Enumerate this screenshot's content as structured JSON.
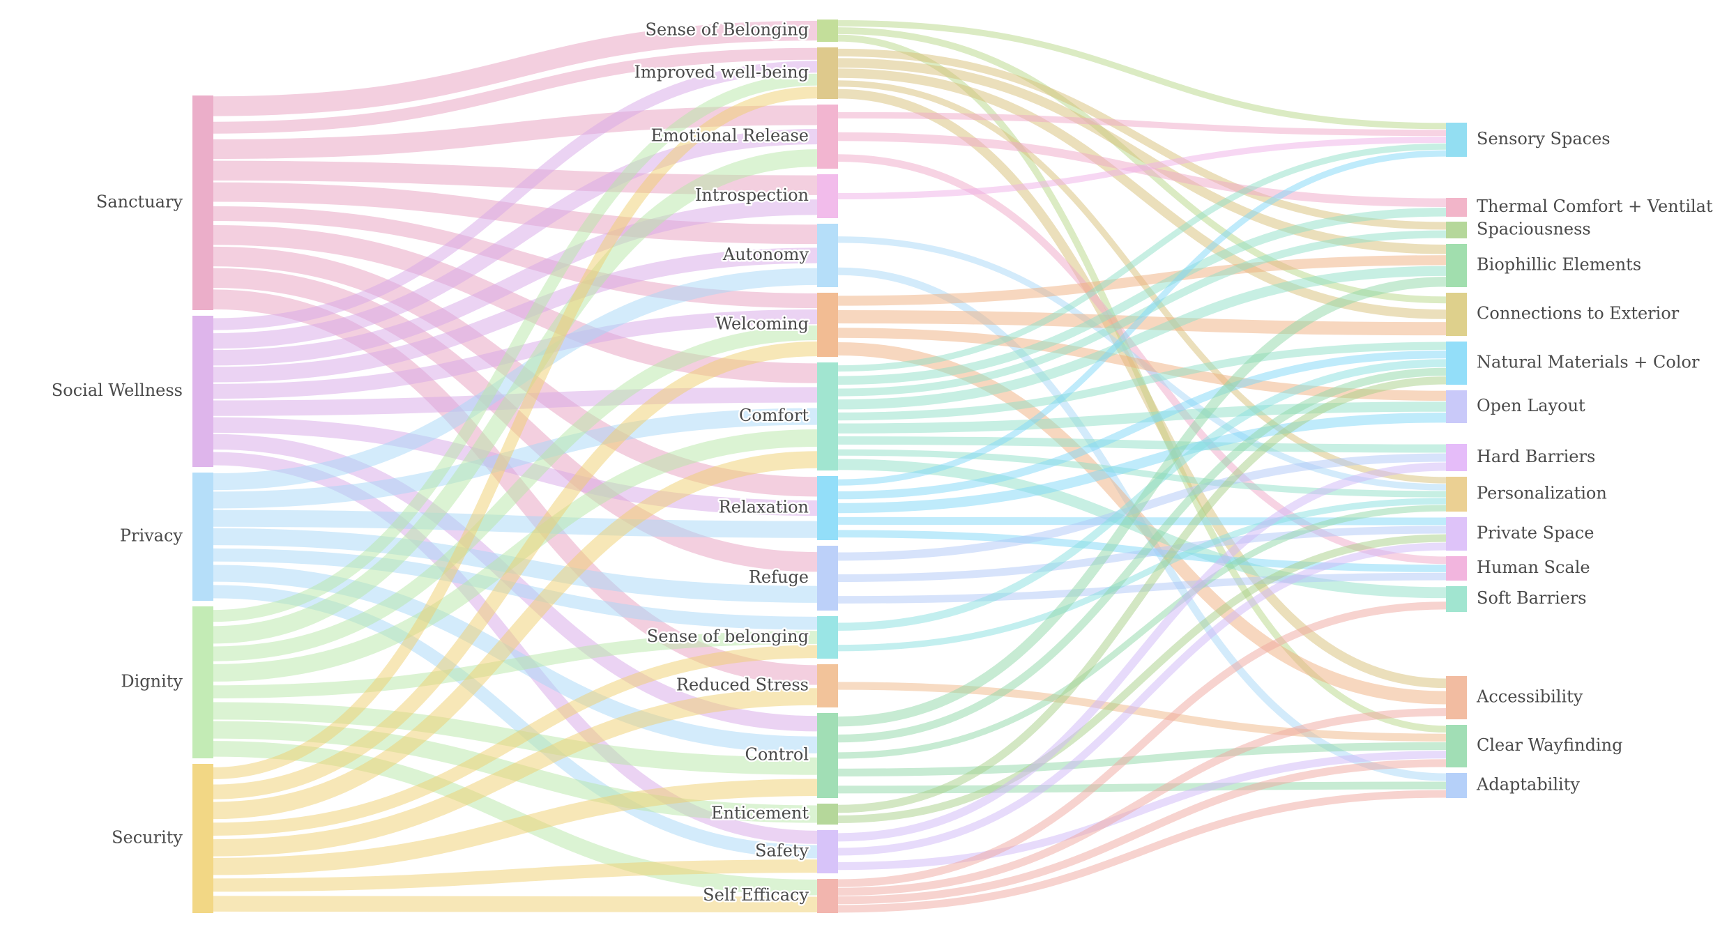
{
  "diagram": {
    "type": "sankey",
    "columns": [
      {
        "nodes": [
          {
            "id": "sanctuary",
            "label": "Sanctuary",
            "color": "#e8a0c0"
          },
          {
            "id": "social",
            "label": "Social Wellness",
            "color": "#d8a8e8"
          },
          {
            "id": "privacy",
            "label": "Privacy",
            "color": "#a8d8f8"
          },
          {
            "id": "dignity",
            "label": "Dignity",
            "color": "#b8e8a8"
          },
          {
            "id": "security",
            "label": "Security",
            "color": "#f0d070"
          }
        ]
      },
      {
        "nodes": [
          {
            "id": "belonging1",
            "label": "Sense of Belonging",
            "color": "#b8d888"
          },
          {
            "id": "wellbeing",
            "label": "Improved well-being",
            "color": "#d8c078"
          },
          {
            "id": "emotional",
            "label": "Emotional Release",
            "color": "#f0a8c8"
          },
          {
            "id": "introspection",
            "label": "Introspection",
            "color": "#f0b0e8"
          },
          {
            "id": "autonomy",
            "label": "Autonomy",
            "color": "#a8d8f8"
          },
          {
            "id": "welcoming",
            "label": "Welcoming",
            "color": "#f0b080"
          },
          {
            "id": "comfort",
            "label": "Comfort",
            "color": "#90e0c8"
          },
          {
            "id": "relaxation",
            "label": "Relaxation",
            "color": "#80d8f8"
          },
          {
            "id": "refuge",
            "label": "Refuge",
            "color": "#b0c8f8"
          },
          {
            "id": "belonging2",
            "label": "Sense of belonging",
            "color": "#88e0e0"
          },
          {
            "id": "stress",
            "label": "Reduced Stress",
            "color": "#f0b888"
          },
          {
            "id": "control",
            "label": "Control",
            "color": "#90d8a8"
          },
          {
            "id": "enticement",
            "label": "Enticement",
            "color": "#a8d088"
          },
          {
            "id": "safety",
            "label": "Safety",
            "color": "#d0b8f8"
          },
          {
            "id": "efficacy",
            "label": "Self Efficacy",
            "color": "#f0a8a0"
          }
        ]
      },
      {
        "nodes": [
          {
            "id": "sensory",
            "label": "Sensory Spaces",
            "color": "#80d8f0"
          },
          {
            "id": "thermal",
            "label": "Thermal Comfort + Ventilation",
            "color": "#f0a8c0"
          },
          {
            "id": "spacious",
            "label": "Spaciousness",
            "color": "#a8d088"
          },
          {
            "id": "biophilic",
            "label": "Biophillic Elements",
            "color": "#90d8a0"
          },
          {
            "id": "exterior",
            "label": "Connections to Exterior",
            "color": "#d8c878"
          },
          {
            "id": "natural",
            "label": "Natural Materials + Color",
            "color": "#80d8f8"
          },
          {
            "id": "open",
            "label": "Open Layout",
            "color": "#c0c0f8"
          },
          {
            "id": "hard",
            "label": "Hard Barriers",
            "color": "#e0b0f8"
          },
          {
            "id": "personal",
            "label": "Personalization",
            "color": "#e8c880"
          },
          {
            "id": "private",
            "label": "Private Space",
            "color": "#d8b8f8"
          },
          {
            "id": "human",
            "label": "Human Scale",
            "color": "#f0a8d8"
          },
          {
            "id": "soft",
            "label": "Soft Barriers",
            "color": "#90e0c8"
          },
          {
            "id": "access",
            "label": "Accessibility",
            "color": "#f0b090"
          },
          {
            "id": "wayfinding",
            "label": "Clear Wayfinding",
            "color": "#90d8a8"
          },
          {
            "id": "adapt",
            "label": "Adaptability",
            "color": "#a8c8f8"
          }
        ]
      }
    ],
    "links": [
      [
        "sanctuary",
        "belonging1"
      ],
      [
        "sanctuary",
        "wellbeing"
      ],
      [
        "sanctuary",
        "emotional"
      ],
      [
        "sanctuary",
        "introspection"
      ],
      [
        "sanctuary",
        "autonomy"
      ],
      [
        "sanctuary",
        "welcoming"
      ],
      [
        "sanctuary",
        "comfort"
      ],
      [
        "sanctuary",
        "relaxation"
      ],
      [
        "sanctuary",
        "refuge"
      ],
      [
        "sanctuary",
        "stress"
      ],
      [
        "social",
        "wellbeing"
      ],
      [
        "social",
        "emotional"
      ],
      [
        "social",
        "introspection"
      ],
      [
        "social",
        "autonomy"
      ],
      [
        "social",
        "welcoming"
      ],
      [
        "social",
        "comfort"
      ],
      [
        "social",
        "relaxation"
      ],
      [
        "social",
        "control"
      ],
      [
        "social",
        "safety"
      ],
      [
        "privacy",
        "autonomy"
      ],
      [
        "privacy",
        "comfort"
      ],
      [
        "privacy",
        "relaxation"
      ],
      [
        "privacy",
        "refuge"
      ],
      [
        "privacy",
        "belonging2"
      ],
      [
        "privacy",
        "safety"
      ],
      [
        "privacy",
        "control"
      ],
      [
        "dignity",
        "wellbeing"
      ],
      [
        "dignity",
        "emotional"
      ],
      [
        "dignity",
        "welcoming"
      ],
      [
        "dignity",
        "comfort"
      ],
      [
        "dignity",
        "belonging2"
      ],
      [
        "dignity",
        "control"
      ],
      [
        "dignity",
        "enticement"
      ],
      [
        "dignity",
        "efficacy"
      ],
      [
        "security",
        "wellbeing"
      ],
      [
        "security",
        "welcoming"
      ],
      [
        "security",
        "comfort"
      ],
      [
        "security",
        "belonging2"
      ],
      [
        "security",
        "stress"
      ],
      [
        "security",
        "control"
      ],
      [
        "security",
        "safety"
      ],
      [
        "security",
        "efficacy"
      ],
      [
        "belonging1",
        "sensory"
      ],
      [
        "belonging1",
        "exterior"
      ],
      [
        "belonging1",
        "wayfinding"
      ],
      [
        "wellbeing",
        "spacious"
      ],
      [
        "wellbeing",
        "biophilic"
      ],
      [
        "wellbeing",
        "exterior"
      ],
      [
        "wellbeing",
        "personal"
      ],
      [
        "wellbeing",
        "access"
      ],
      [
        "emotional",
        "sensory"
      ],
      [
        "emotional",
        "thermal"
      ],
      [
        "emotional",
        "human"
      ],
      [
        "introspection",
        "sensory"
      ],
      [
        "autonomy",
        "adapt"
      ],
      [
        "autonomy",
        "personal"
      ],
      [
        "welcoming",
        "biophilic"
      ],
      [
        "welcoming",
        "exterior"
      ],
      [
        "welcoming",
        "open"
      ],
      [
        "welcoming",
        "access"
      ],
      [
        "comfort",
        "sensory"
      ],
      [
        "comfort",
        "thermal"
      ],
      [
        "comfort",
        "spacious"
      ],
      [
        "comfort",
        "biophilic"
      ],
      [
        "comfort",
        "natural"
      ],
      [
        "comfort",
        "open"
      ],
      [
        "comfort",
        "hard"
      ],
      [
        "comfort",
        "personal"
      ],
      [
        "comfort",
        "soft"
      ],
      [
        "relaxation",
        "sensory"
      ],
      [
        "relaxation",
        "natural"
      ],
      [
        "relaxation",
        "open"
      ],
      [
        "relaxation",
        "private"
      ],
      [
        "relaxation",
        "human"
      ],
      [
        "refuge",
        "hard"
      ],
      [
        "refuge",
        "private"
      ],
      [
        "refuge",
        "human"
      ],
      [
        "belonging2",
        "natural"
      ],
      [
        "belonging2",
        "personal"
      ],
      [
        "stress",
        "wayfinding"
      ],
      [
        "control",
        "biophilic"
      ],
      [
        "control",
        "natural"
      ],
      [
        "control",
        "personal"
      ],
      [
        "control",
        "wayfinding"
      ],
      [
        "control",
        "adapt"
      ],
      [
        "enticement",
        "natural"
      ],
      [
        "enticement",
        "private"
      ],
      [
        "safety",
        "hard"
      ],
      [
        "safety",
        "private"
      ],
      [
        "safety",
        "wayfinding"
      ],
      [
        "efficacy",
        "soft"
      ],
      [
        "efficacy",
        "access"
      ],
      [
        "efficacy",
        "wayfinding"
      ],
      [
        "efficacy",
        "adapt"
      ]
    ]
  }
}
